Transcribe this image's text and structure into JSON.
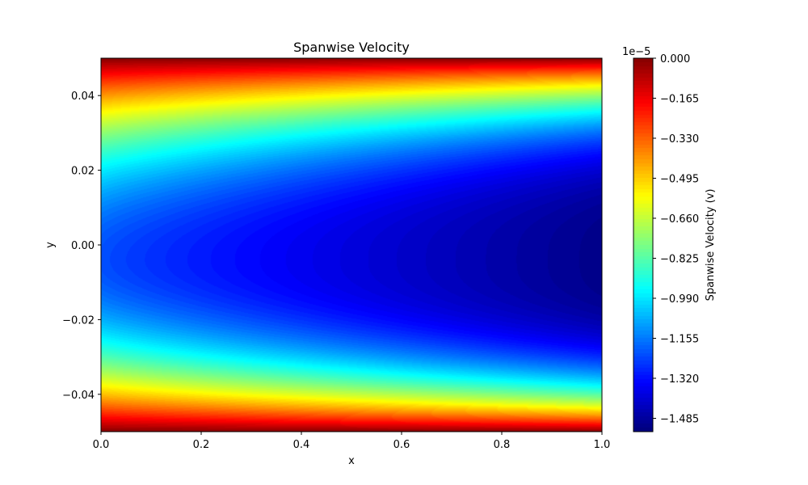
{
  "chart_data": {
    "type": "heatmap",
    "title": "Spanwise Velocity",
    "xlabel": "x",
    "ylabel": "y",
    "xlim": [
      0.0,
      1.0
    ],
    "ylim": [
      -0.05,
      0.05
    ],
    "x_ticks": [
      "0.0",
      "0.2",
      "0.4",
      "0.6",
      "0.8",
      "1.0"
    ],
    "y_ticks": [
      "−0.04",
      "−0.02",
      "0.00",
      "0.02",
      "0.04"
    ],
    "colormap": "jet",
    "colorbar": {
      "label": "Spanwise Velocity (v)",
      "offset_text": "1e−5",
      "range": [
        -1.54,
        0.0
      ],
      "ticks": [
        "0.000",
        "−0.165",
        "−0.330",
        "−0.495",
        "−0.660",
        "−0.825",
        "−0.990",
        "−1.155",
        "−1.320",
        "−1.485"
      ]
    },
    "field_profile": {
      "description_values": "v(x, y) in units of 1e-5",
      "wall_value": 0.0,
      "centerline_min_at_x0": -1.22,
      "centerline_min_at_x1": -1.52,
      "min_y_location": -0.004
    }
  }
}
